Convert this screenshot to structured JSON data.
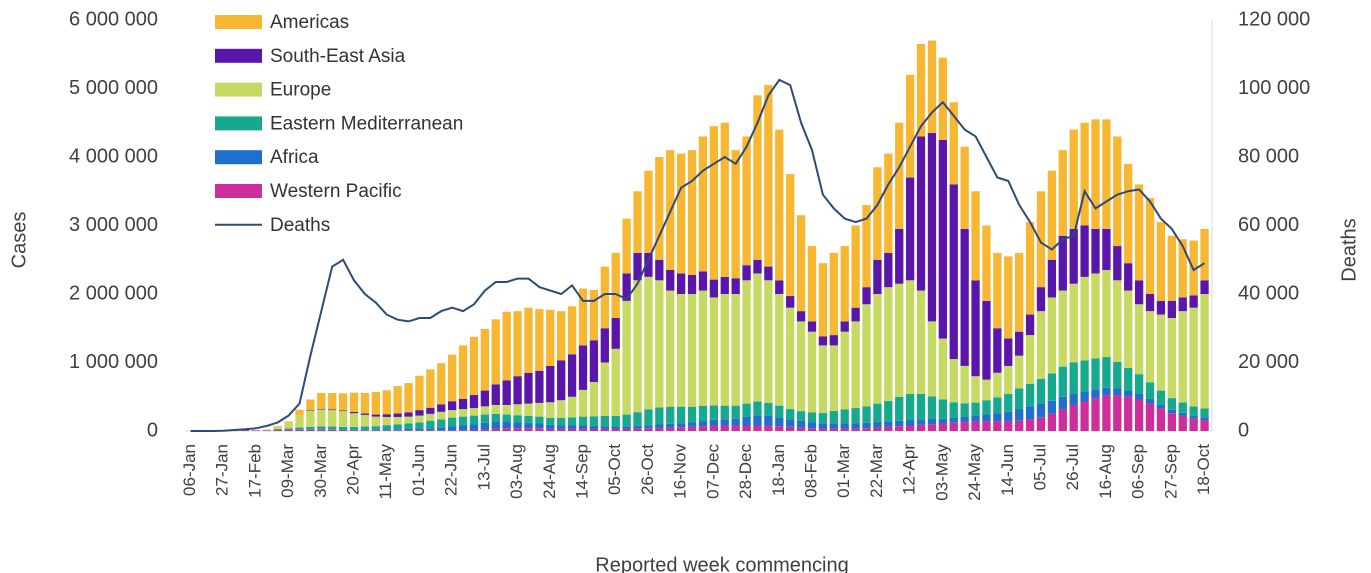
{
  "chart_data": {
    "type": "bar",
    "xlabel": "Reported week commencing",
    "ylabel": "Cases",
    "y2label": "Deaths",
    "legend": "upper left",
    "grid": false,
    "categories": [
      "06-Jan",
      null,
      null,
      "27-Jan",
      null,
      null,
      "17-Feb",
      null,
      null,
      "09-Mar",
      null,
      null,
      "30-Mar",
      null,
      null,
      "20-Apr",
      null,
      null,
      "11-May",
      null,
      null,
      "01-Jun",
      null,
      null,
      "22-Jun",
      null,
      null,
      "13-Jul",
      null,
      null,
      "03-Aug",
      null,
      null,
      "24-Aug",
      null,
      null,
      "14-Sep",
      null,
      null,
      "05-Oct",
      null,
      null,
      "26-Oct",
      null,
      null,
      "16-Nov",
      null,
      null,
      "07-Dec",
      null,
      null,
      "28-Dec",
      null,
      null,
      "18-Jan",
      null,
      null,
      "08-Feb",
      null,
      null,
      "01-Mar",
      null,
      null,
      "22-Mar",
      null,
      null,
      "12-Apr",
      null,
      null,
      "03-May",
      null,
      null,
      "24-May",
      null,
      null,
      "14-Jun",
      null,
      null,
      "05-Jul",
      null,
      null,
      "26-Jul",
      null,
      null,
      "16-Aug",
      null,
      null,
      "06-Sep",
      null,
      null,
      "27-Sep",
      null,
      null,
      "18-Oct"
    ],
    "ylim": [
      0,
      6000000
    ],
    "yticks": [
      0,
      {
        "value": 1000000,
        "label": "1 000 000"
      },
      {
        "value": 2000000,
        "label": "2 000 000"
      },
      {
        "value": 3000000,
        "label": "3 000 000"
      },
      {
        "value": 4000000,
        "label": "4 000 000"
      },
      {
        "value": 5000000,
        "label": "5 000 000"
      },
      {
        "value": 6000000,
        "label": "6 000 000"
      }
    ],
    "y2lim": [
      0,
      120000
    ],
    "y2ticks": [
      0,
      {
        "value": 20000,
        "label": "20 000"
      },
      {
        "value": 40000,
        "label": "40 000"
      },
      {
        "value": 60000,
        "label": "60 000"
      },
      {
        "value": 80000,
        "label": "80 000"
      },
      {
        "value": 100000,
        "label": "100 000"
      },
      {
        "value": 120000,
        "label": "120 000"
      }
    ],
    "series": [
      {
        "name": "Americas",
        "color": "#f7b733",
        "values": [
          0,
          0,
          0,
          0,
          0,
          0,
          0,
          0,
          5000,
          20000,
          80000,
          150000,
          230000,
          240000,
          250000,
          280000,
          300000,
          330000,
          350000,
          400000,
          430000,
          500000,
          560000,
          600000,
          680000,
          780000,
          850000,
          900000,
          950000,
          1000000,
          950000,
          950000,
          900000,
          820000,
          720000,
          700000,
          830000,
          735000,
          900000,
          950000,
          800000,
          900000,
          1200000,
          1500000,
          1750000,
          1750000,
          1820000,
          1970000,
          2240000,
          2250000,
          1870000,
          1880000,
          2400000,
          2650000,
          2200000,
          1780000,
          1400000,
          1100000,
          1070000,
          1200000,
          1100000,
          1200000,
          1200000,
          1350000,
          1450000,
          1550000,
          1500000,
          1350000,
          1350000,
          1200000,
          1200000,
          1200000,
          1300000,
          1100000,
          1100000,
          1200000,
          1150000,
          1350000,
          1400000,
          1300000,
          1250000,
          1450000,
          1500000,
          1600000,
          1600000,
          1600000,
          1450000,
          1400000,
          1400000,
          1150000,
          950000,
          850000,
          800000,
          750000
        ]
      },
      {
        "name": "South-East Asia",
        "color": "#5a16ab",
        "values": [
          0,
          0,
          0,
          0,
          0,
          0,
          0,
          0,
          0,
          0,
          0,
          10000,
          10000,
          10000,
          10000,
          20000,
          20000,
          30000,
          40000,
          50000,
          60000,
          80000,
          90000,
          110000,
          130000,
          150000,
          190000,
          230000,
          300000,
          360000,
          410000,
          450000,
          470000,
          530000,
          580000,
          620000,
          650000,
          610000,
          500000,
          450000,
          400000,
          400000,
          350000,
          300000,
          300000,
          300000,
          280000,
          280000,
          260000,
          250000,
          230000,
          220000,
          200000,
          200000,
          200000,
          170000,
          150000,
          150000,
          130000,
          150000,
          150000,
          200000,
          250000,
          500000,
          500000,
          800000,
          1500000,
          2250000,
          2750000,
          2900000,
          2550000,
          2000000,
          1400000,
          1150000,
          650000,
          400000,
          350000,
          300000,
          350000,
          550000,
          800000,
          800000,
          750000,
          650000,
          600000,
          500000,
          400000,
          350000,
          250000,
          200000,
          250000,
          200000,
          180000,
          200000
        ]
      },
      {
        "name": "Europe",
        "color": "#c6d962",
        "values": [
          0,
          0,
          0,
          0,
          0,
          0,
          0,
          10000,
          40000,
          80000,
          180000,
          240000,
          250000,
          240000,
          230000,
          200000,
          170000,
          140000,
          120000,
          110000,
          100000,
          100000,
          100000,
          110000,
          110000,
          110000,
          110000,
          120000,
          130000,
          140000,
          160000,
          180000,
          200000,
          230000,
          260000,
          300000,
          390000,
          500000,
          780000,
          980000,
          1660000,
          1925000,
          1935000,
          1855000,
          1695000,
          1645000,
          1645000,
          1685000,
          1575000,
          1630000,
          1630000,
          1800000,
          1870000,
          1790000,
          1630000,
          1480000,
          1310000,
          1180000,
          985000,
          955000,
          1135000,
          1265000,
          1490000,
          1600000,
          1660000,
          1650000,
          1660000,
          1510000,
          1095000,
          890000,
          630000,
          545000,
          385000,
          300000,
          360000,
          410000,
          480000,
          710000,
          990000,
          1110000,
          1110000,
          1150000,
          1220000,
          1240000,
          1270000,
          1190000,
          1130000,
          1020000,
          1040000,
          1110000,
          1170000,
          1335000,
          1440000,
          1670000
        ]
      },
      {
        "name": "Eastern Mediterranean",
        "color": "#17a98d",
        "values": [
          0,
          0,
          0,
          0,
          0,
          0,
          0,
          2000,
          10000,
          20000,
          30000,
          40000,
          40000,
          40000,
          40000,
          40000,
          45000,
          50000,
          60000,
          70000,
          80000,
          90000,
          110000,
          120000,
          130000,
          130000,
          130000,
          120000,
          110000,
          100000,
          100000,
          100000,
          100000,
          100000,
          110000,
          120000,
          130000,
          140000,
          150000,
          150000,
          170000,
          200000,
          230000,
          250000,
          250000,
          240000,
          230000,
          220000,
          210000,
          200000,
          190000,
          190000,
          200000,
          190000,
          170000,
          150000,
          140000,
          140000,
          150000,
          180000,
          200000,
          220000,
          240000,
          270000,
          300000,
          350000,
          380000,
          370000,
          330000,
          280000,
          230000,
          200000,
          190000,
          210000,
          230000,
          260000,
          300000,
          330000,
          360000,
          400000,
          440000,
          460000,
          460000,
          450000,
          450000,
          390000,
          330000,
          290000,
          240000,
          200000,
          170000,
          150000,
          140000,
          130000
        ]
      },
      {
        "name": "Africa",
        "color": "#1f6fcf",
        "values": [
          0,
          0,
          0,
          0,
          0,
          0,
          0,
          0,
          0,
          0,
          0,
          0,
          5000,
          5000,
          5000,
          10000,
          10000,
          10000,
          15000,
          15000,
          20000,
          25000,
          30000,
          40000,
          55000,
          70000,
          80000,
          100000,
          110000,
          100000,
          90000,
          80000,
          70000,
          60000,
          50000,
          50000,
          50000,
          45000,
          40000,
          40000,
          40000,
          40000,
          45000,
          50000,
          55000,
          60000,
          65000,
          75000,
          85000,
          90000,
          100000,
          130000,
          150000,
          140000,
          130000,
          110000,
          100000,
          90000,
          80000,
          80000,
          80000,
          80000,
          80000,
          80000,
          80000,
          80000,
          80000,
          80000,
          75000,
          70000,
          70000,
          75000,
          85000,
          100000,
          120000,
          140000,
          170000,
          190000,
          200000,
          190000,
          180000,
          160000,
          140000,
          130000,
          110000,
          100000,
          90000,
          80000,
          70000,
          60000,
          50000,
          45000,
          40000,
          40000
        ]
      },
      {
        "name": "Western Pacific",
        "color": "#cc2e9c",
        "values": [
          0,
          0,
          1000,
          10000,
          20000,
          20000,
          10000,
          10000,
          20000,
          20000,
          20000,
          20000,
          20000,
          20000,
          15000,
          10000,
          10000,
          10000,
          10000,
          10000,
          10000,
          10000,
          10000,
          10000,
          10000,
          10000,
          15000,
          20000,
          30000,
          40000,
          40000,
          40000,
          40000,
          30000,
          30000,
          30000,
          30000,
          30000,
          30000,
          30000,
          30000,
          35000,
          40000,
          45000,
          50000,
          55000,
          60000,
          70000,
          80000,
          80000,
          80000,
          80000,
          80000,
          80000,
          70000,
          60000,
          50000,
          40000,
          35000,
          35000,
          35000,
          35000,
          40000,
          50000,
          60000,
          70000,
          80000,
          90000,
          100000,
          110000,
          120000,
          130000,
          140000,
          140000,
          140000,
          140000,
          150000,
          170000,
          200000,
          250000,
          320000,
          380000,
          430000,
          480000,
          520000,
          520000,
          500000,
          460000,
          400000,
          330000,
          260000,
          220000,
          180000,
          160000
        ]
      },
      {
        "name": "Deaths",
        "type": "line",
        "axis": "y2",
        "color": "#2d4a78",
        "values": [
          0,
          0,
          0,
          100,
          300,
          500,
          800,
          1500,
          2500,
          4500,
          8000,
          22000,
          35000,
          48000,
          50000,
          44000,
          40000,
          37500,
          34000,
          32500,
          32000,
          33000,
          33000,
          35000,
          36000,
          35000,
          37000,
          41000,
          43500,
          43500,
          44500,
          44500,
          42000,
          41000,
          40000,
          42500,
          38000,
          38000,
          40000,
          40000,
          38500,
          43000,
          50000,
          57000,
          64000,
          71000,
          73000,
          76000,
          78000,
          80000,
          78000,
          83000,
          90000,
          98000,
          102500,
          101000,
          90000,
          82000,
          69000,
          65000,
          62000,
          61000,
          62000,
          66000,
          72000,
          77000,
          83000,
          89000,
          93000,
          96000,
          92000,
          88000,
          86000,
          80000,
          74000,
          73000,
          66000,
          61000,
          55000,
          53000,
          56000,
          57000,
          70000,
          65000,
          67000,
          69000,
          70000,
          70500,
          67000,
          62000,
          59000,
          54000,
          47000,
          49000
        ]
      }
    ]
  }
}
